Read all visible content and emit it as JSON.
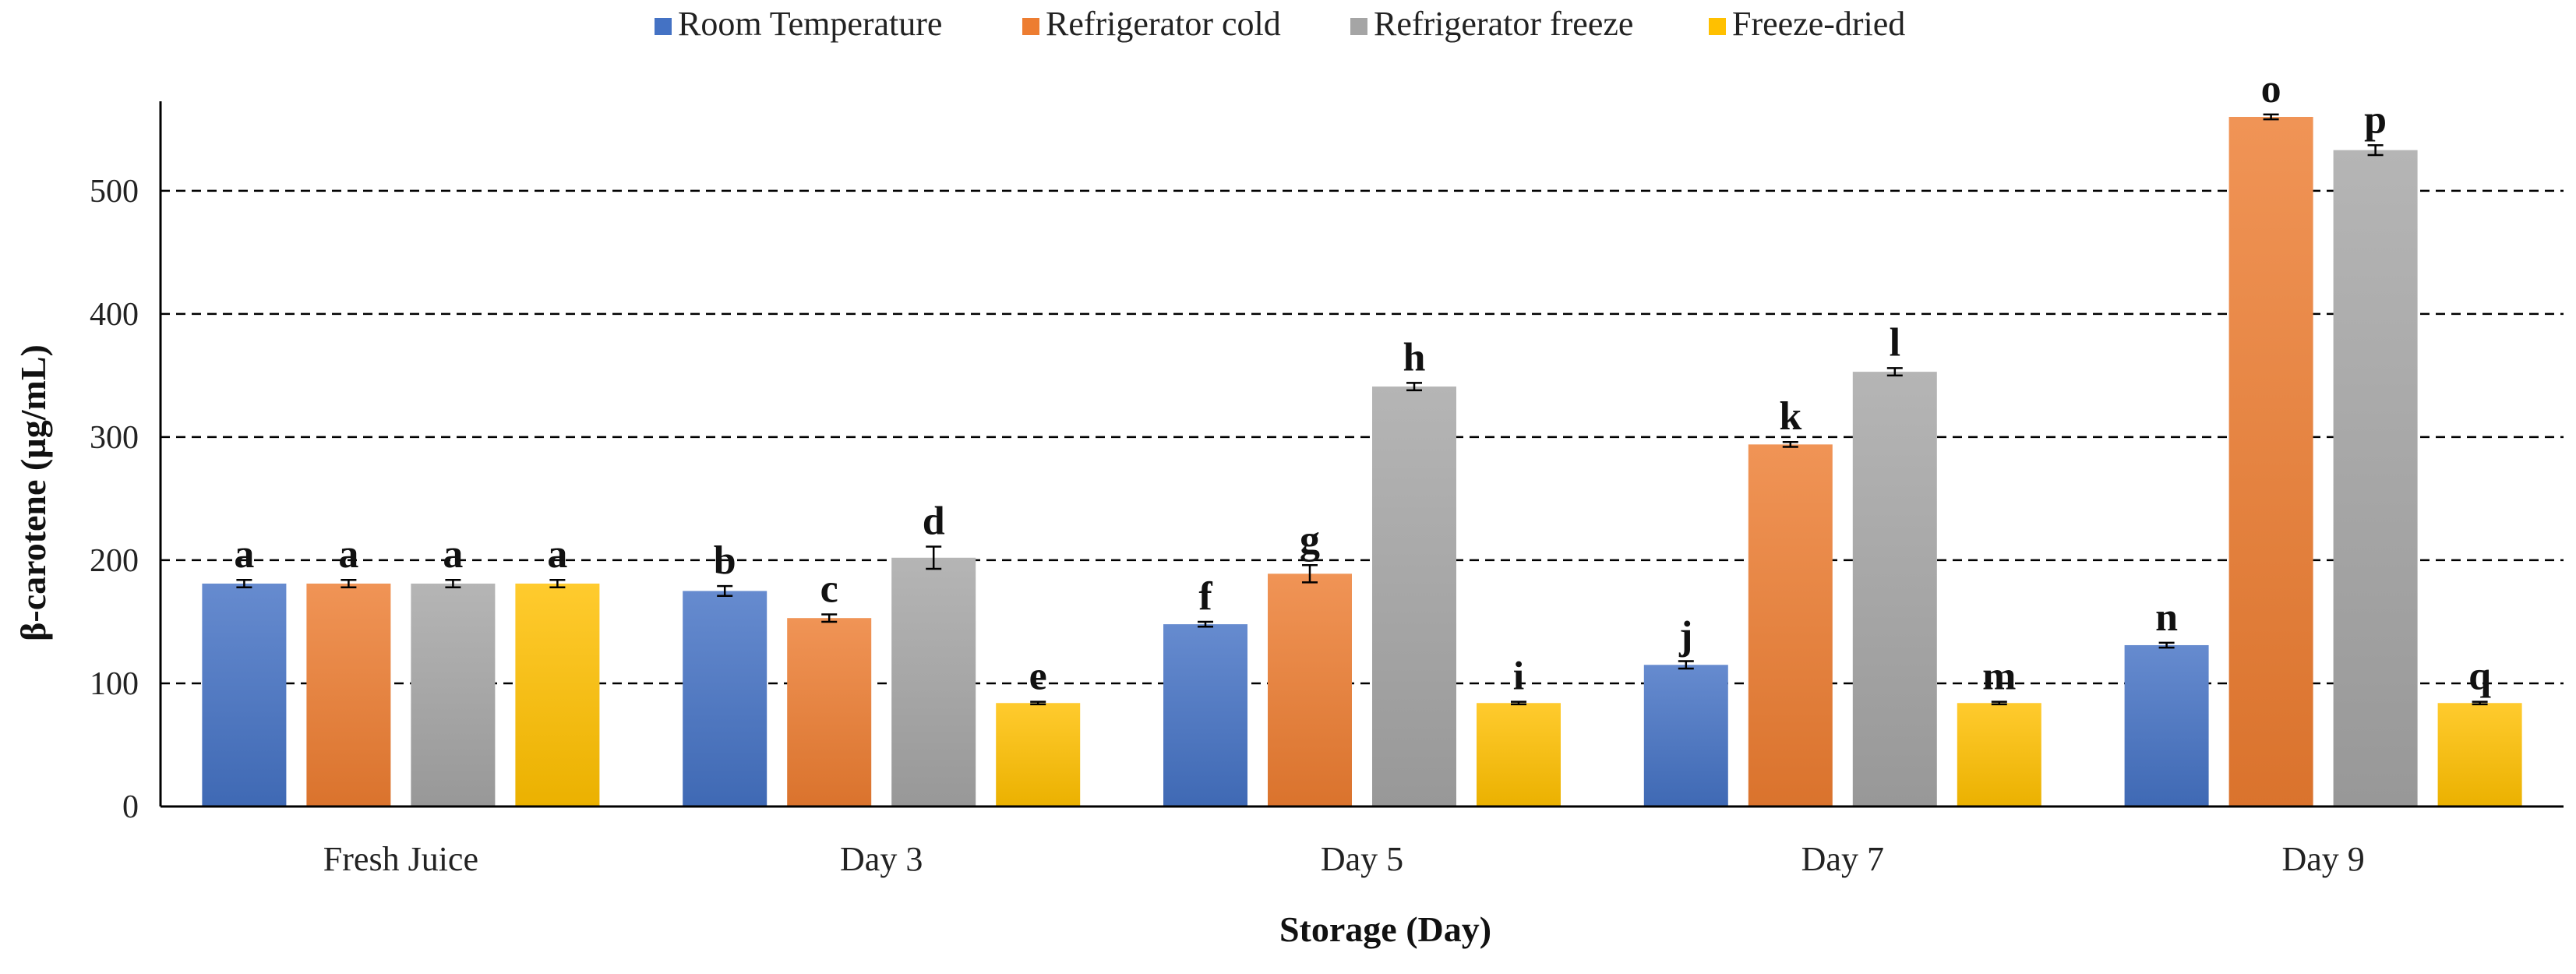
{
  "chart_data": {
    "type": "bar",
    "title": "",
    "xlabel": "Storage (Day)",
    "ylabel": "β-carotene (µg/mL)",
    "ylim": [
      0,
      560
    ],
    "yticks": [
      0,
      100,
      200,
      300,
      400,
      500
    ],
    "grid": "dashed horizontal",
    "legend_position": "top-center",
    "categories": [
      "Fresh Juice",
      "Day 3",
      "Day 5",
      "Day 7",
      "Day 9"
    ],
    "series": [
      {
        "name": "Room Temperature",
        "color": "#4472C4",
        "values": [
          181,
          175,
          148,
          115,
          131
        ],
        "errors": [
          3,
          4,
          2,
          3,
          2
        ],
        "letters": [
          "a",
          "b",
          "f",
          "j",
          "n"
        ]
      },
      {
        "name": "Refrigerator cold",
        "color": "#ED7D31",
        "values": [
          181,
          153,
          189,
          294,
          560
        ],
        "errors": [
          3,
          3,
          7,
          2,
          2
        ],
        "letters": [
          "a",
          "c",
          "g",
          "k",
          "o"
        ]
      },
      {
        "name": "Refrigerator freeze",
        "color": "#A5A5A5",
        "values": [
          181,
          202,
          341,
          353,
          533
        ],
        "errors": [
          3,
          9,
          3,
          3,
          4
        ],
        "letters": [
          "a",
          "d",
          "h",
          "l",
          "p"
        ]
      },
      {
        "name": "Freeze-dried",
        "color": "#FFC000",
        "values": [
          181,
          84,
          84,
          84,
          84
        ],
        "errors": [
          3,
          1,
          1,
          1,
          1
        ],
        "letters": [
          "a",
          "e",
          "i",
          "m",
          "q"
        ]
      }
    ]
  }
}
